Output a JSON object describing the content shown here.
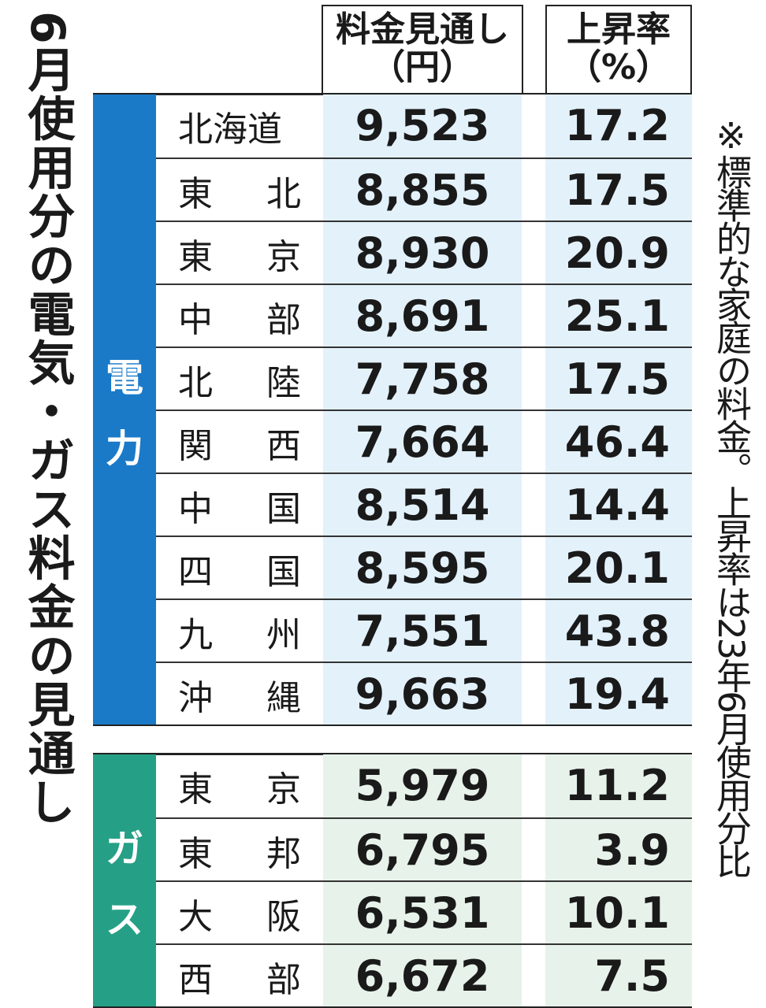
{
  "title": "6月使用分の電気・ガス料金の見通し",
  "note": "※標準的な家庭の料金。上昇率は23年6月使用分比",
  "header": {
    "price_line1": "料金見通し",
    "price_line2": "（円）",
    "rate_line1": "上昇率",
    "rate_line2": "（%）"
  },
  "colors": {
    "electricity": "#1a7ac8",
    "gas": "#25a086",
    "elec_cell": "#e3f1fb",
    "gas_cell": "#e7f2ea"
  },
  "chart_data": {
    "type": "table",
    "columns": [
      "料金見通し（円）",
      "上昇率（%）"
    ],
    "groups": [
      {
        "label_chars": [
          "電",
          "力"
        ],
        "rows": [
          {
            "name": [
              "北海道"
            ],
            "price": "9,523",
            "rate": "17.2"
          },
          {
            "name": [
              "東",
              "北"
            ],
            "price": "8,855",
            "rate": "17.5"
          },
          {
            "name": [
              "東",
              "京"
            ],
            "price": "8,930",
            "rate": "20.9"
          },
          {
            "name": [
              "中",
              "部"
            ],
            "price": "8,691",
            "rate": "25.1"
          },
          {
            "name": [
              "北",
              "陸"
            ],
            "price": "7,758",
            "rate": "17.5"
          },
          {
            "name": [
              "関",
              "西"
            ],
            "price": "7,664",
            "rate": "46.4"
          },
          {
            "name": [
              "中",
              "国"
            ],
            "price": "8,514",
            "rate": "14.4"
          },
          {
            "name": [
              "四",
              "国"
            ],
            "price": "8,595",
            "rate": "20.1"
          },
          {
            "name": [
              "九",
              "州"
            ],
            "price": "7,551",
            "rate": "43.8"
          },
          {
            "name": [
              "沖",
              "縄"
            ],
            "price": "9,663",
            "rate": "19.4"
          }
        ]
      },
      {
        "label_chars": [
          "ガ",
          "ス"
        ],
        "rows": [
          {
            "name": [
              "東",
              "京"
            ],
            "price": "5,979",
            "rate": "11.2"
          },
          {
            "name": [
              "東",
              "邦"
            ],
            "price": "6,795",
            "rate": "3.9"
          },
          {
            "name": [
              "大",
              "阪"
            ],
            "price": "6,531",
            "rate": "10.1"
          },
          {
            "name": [
              "西",
              "部"
            ],
            "price": "6,672",
            "rate": "7.5"
          }
        ]
      }
    ]
  }
}
